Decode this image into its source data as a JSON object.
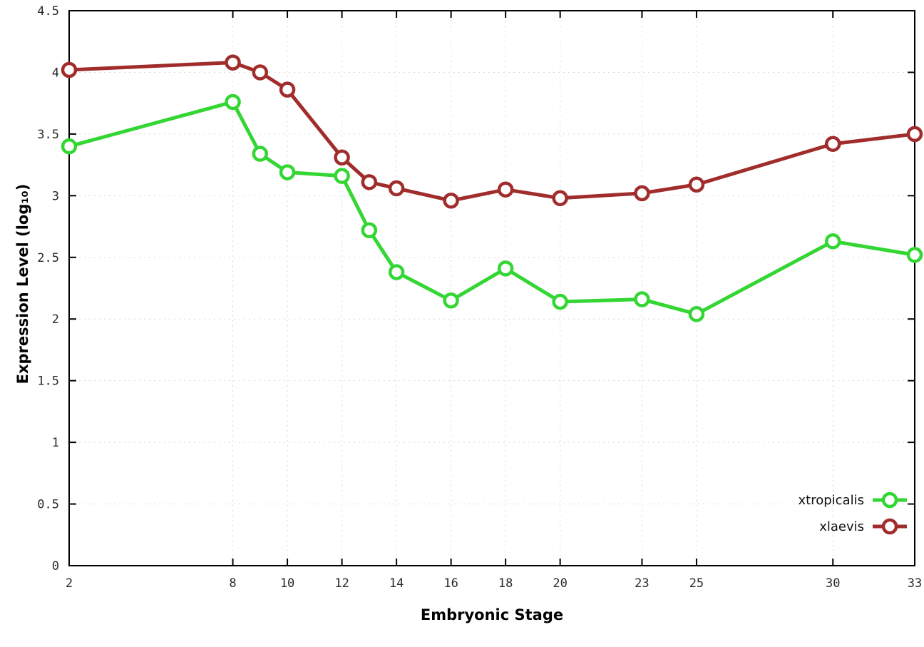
{
  "chart_data": {
    "type": "line",
    "title": "",
    "xlabel": "Embryonic Stage",
    "ylabel": "Expression Level (log₁₀)",
    "x": [
      2,
      8,
      9,
      10,
      12,
      13,
      14,
      16,
      18,
      20,
      23,
      25,
      30,
      33
    ],
    "series": [
      {
        "name": "xtropicalis",
        "color": "#33d633",
        "values": [
          3.4,
          3.76,
          3.34,
          3.19,
          3.16,
          2.72,
          2.38,
          2.15,
          2.41,
          2.14,
          2.16,
          2.04,
          2.63,
          2.52
        ]
      },
      {
        "name": "xlaevis",
        "color": "#a02c2c",
        "values": [
          4.02,
          4.08,
          4.0,
          3.86,
          3.31,
          3.11,
          3.06,
          2.96,
          3.05,
          2.98,
          3.02,
          3.09,
          3.42,
          3.5
        ]
      }
    ],
    "xticks": [
      2,
      8,
      10,
      12,
      14,
      16,
      18,
      20,
      23,
      25,
      30,
      33
    ],
    "yticks": [
      0,
      0.5,
      1,
      1.5,
      2,
      2.5,
      3,
      3.5,
      4,
      4.5
    ],
    "xlim": [
      2,
      33
    ],
    "ylim": [
      0,
      4.5
    ],
    "grid": true,
    "legend_position": "bottom-right",
    "colors": {
      "grid": "#d9d9d9",
      "axis": "#000000",
      "tick_text": "#2a2a2a",
      "background": "#ffffff"
    }
  }
}
